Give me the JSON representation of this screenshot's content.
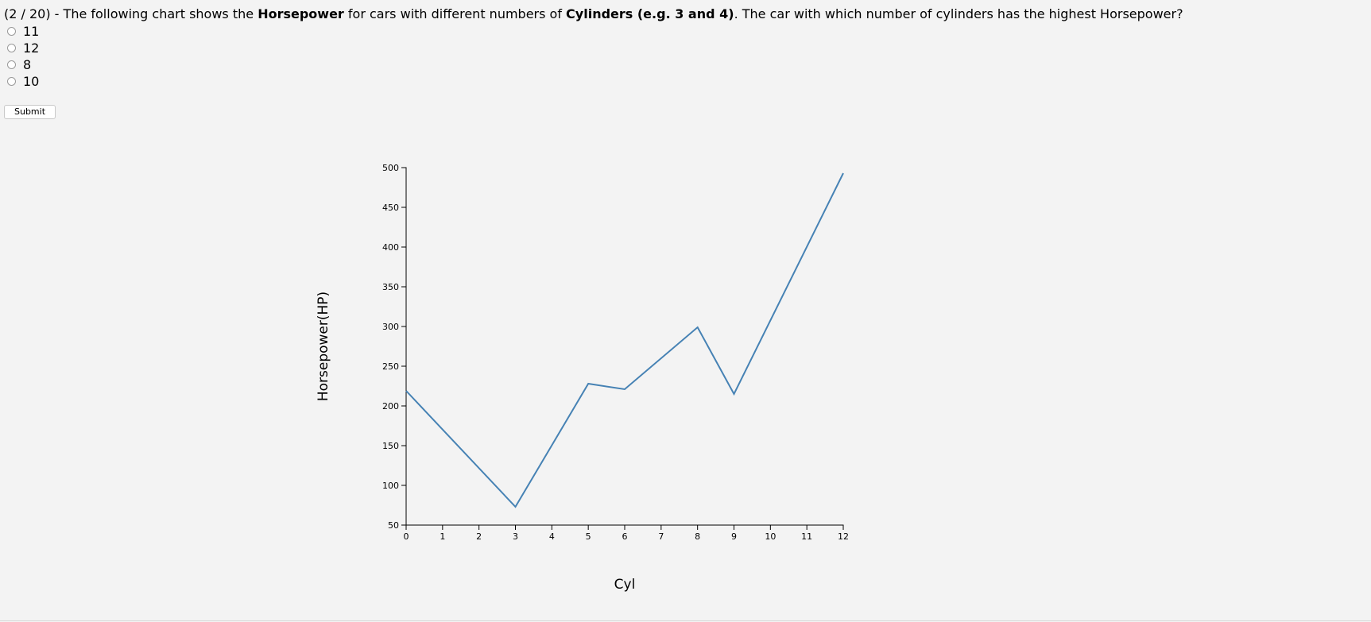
{
  "question": {
    "progress": "(2 / 20)",
    "sep1": " - The following chart shows the ",
    "bold1": "Horsepower",
    "sep2": " for cars with different numbers of ",
    "bold2": "Cylinders (e.g. 3 and 4)",
    "sep3": ". The car with which number of cylinders has the highest Horsepower?"
  },
  "options": [
    "11",
    "12",
    "8",
    "10"
  ],
  "submit_label": "Submit",
  "chart_data": {
    "type": "line",
    "title": "",
    "xlabel": "Cyl",
    "ylabel": "Horsepower(HP)",
    "xlim": [
      0,
      12
    ],
    "ylim": [
      50,
      500
    ],
    "x_ticks": [
      0,
      1,
      2,
      3,
      4,
      5,
      6,
      7,
      8,
      9,
      10,
      11,
      12
    ],
    "y_ticks": [
      50,
      100,
      150,
      200,
      250,
      300,
      350,
      400,
      450,
      500
    ],
    "grid": false,
    "line_color": "#4682b4",
    "series": [
      {
        "x": [
          0,
          3,
          5,
          6,
          8,
          9,
          12
        ],
        "y": [
          219,
          73,
          228,
          221,
          299,
          215,
          493
        ]
      }
    ]
  }
}
